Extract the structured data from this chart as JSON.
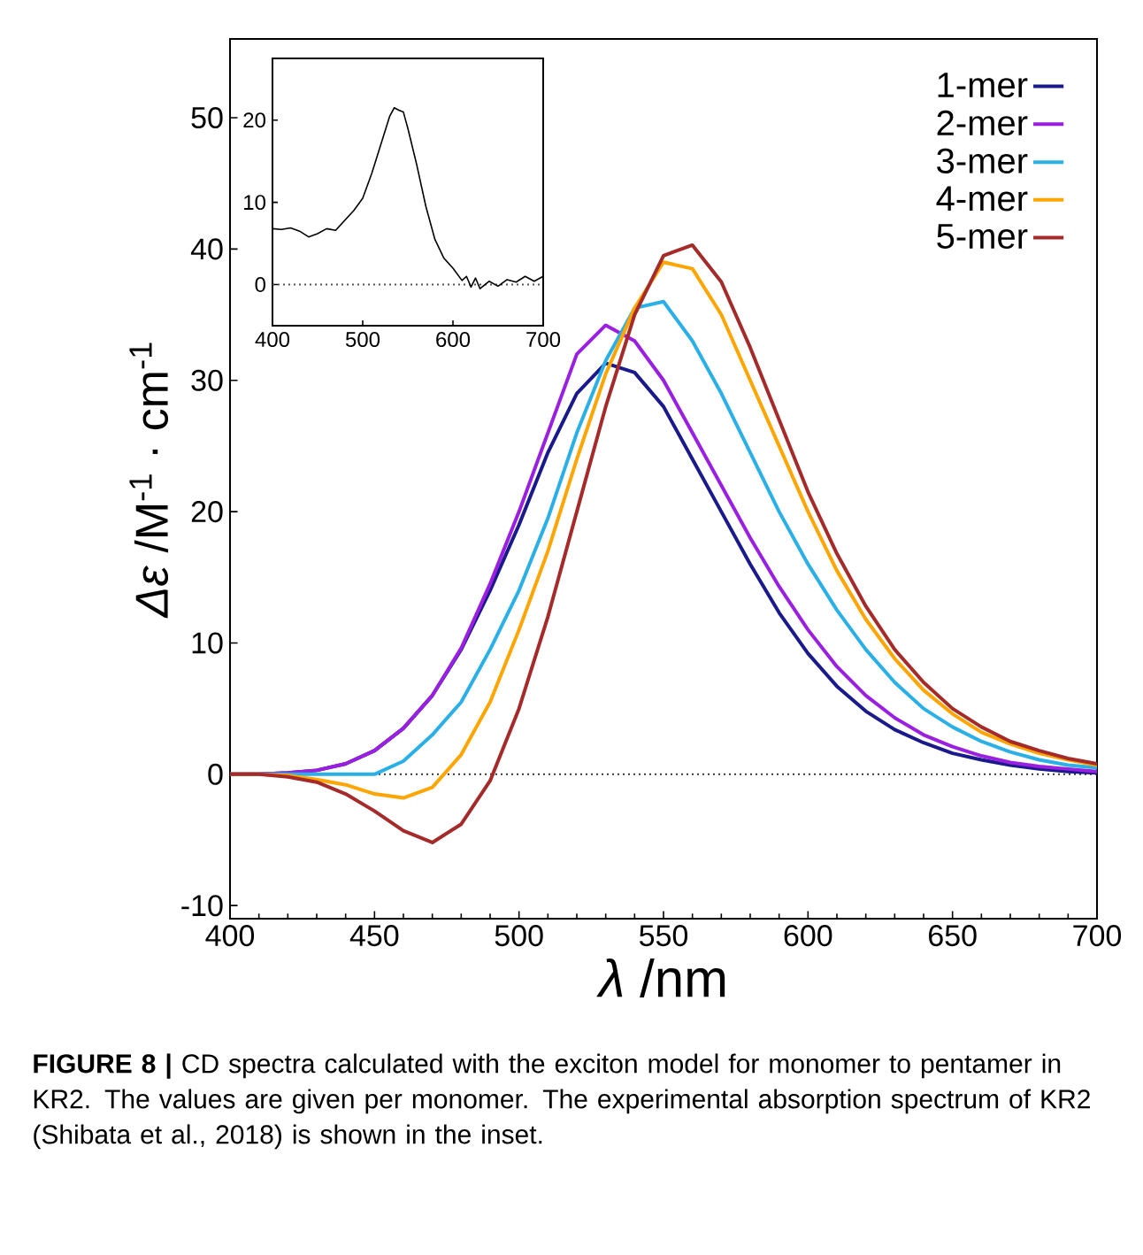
{
  "chart_data": [
    {
      "type": "line",
      "xlabel": "*λ* /nm",
      "ylabel": "*Δε* /M$^{-1}$ · cm$^{-1}$",
      "xlim": [
        400,
        700
      ],
      "ylim": [
        -11,
        56
      ],
      "xticks": [
        400,
        450,
        500,
        550,
        600,
        650,
        700
      ],
      "yticks": [
        -10,
        0,
        10,
        20,
        30,
        40,
        50
      ],
      "legend": "top right",
      "x": [
        400,
        410,
        420,
        430,
        440,
        450,
        460,
        470,
        480,
        490,
        500,
        510,
        520,
        530,
        540,
        550,
        560,
        570,
        580,
        590,
        600,
        610,
        620,
        630,
        640,
        650,
        660,
        670,
        680,
        690,
        700
      ],
      "series": [
        {
          "name": "1-mer",
          "color": "#1a1a8c",
          "values": [
            0,
            0,
            0.1,
            0.3,
            0.8,
            1.8,
            3.5,
            6,
            9.5,
            14,
            19,
            24.5,
            29,
            31.3,
            30.6,
            28,
            24,
            20,
            16,
            12.3,
            9.2,
            6.7,
            4.8,
            3.4,
            2.4,
            1.6,
            1.1,
            0.7,
            0.4,
            0.2,
            0.1
          ]
        },
        {
          "name": "2-mer",
          "color": "#9b1fe0",
          "values": [
            0,
            0,
            0.1,
            0.3,
            0.8,
            1.8,
            3.5,
            6,
            9.6,
            14.5,
            20,
            26,
            32,
            34.2,
            33,
            30,
            26,
            22,
            18,
            14.3,
            11,
            8.2,
            6,
            4.3,
            3,
            2.1,
            1.4,
            0.9,
            0.6,
            0.4,
            0.2
          ]
        },
        {
          "name": "3-mer",
          "color": "#2ab0e6",
          "values": [
            0,
            0,
            0,
            0,
            0,
            0,
            1,
            3,
            5.5,
            9.5,
            14,
            19.5,
            26,
            31.5,
            35.5,
            36,
            33,
            29,
            24.5,
            20,
            16,
            12.5,
            9.5,
            7,
            5,
            3.6,
            2.5,
            1.7,
            1.1,
            0.7,
            0.5
          ]
        },
        {
          "name": "4-mer",
          "color": "#ffa500",
          "values": [
            0,
            0,
            -0.1,
            -0.4,
            -0.8,
            -1.5,
            -1.8,
            -1,
            1.5,
            5.5,
            11,
            17,
            24,
            30.5,
            35.5,
            39,
            38.5,
            35,
            30,
            25,
            20,
            15.5,
            11.8,
            8.8,
            6.4,
            4.6,
            3.2,
            2.3,
            1.6,
            1.1,
            0.7
          ]
        },
        {
          "name": "5-mer",
          "color": "#a52a2a",
          "values": [
            0,
            0,
            -0.2,
            -0.6,
            -1.5,
            -2.8,
            -4.3,
            -5.2,
            -3.8,
            -0.5,
            5,
            12,
            20,
            28,
            35,
            39.5,
            40.3,
            37.5,
            32.5,
            27,
            21.5,
            16.8,
            12.8,
            9.5,
            7,
            5,
            3.6,
            2.5,
            1.8,
            1.2,
            0.8
          ]
        }
      ],
      "ref_lines": [
        {
          "axis": "y",
          "value": 0,
          "color": "#333333",
          "line_style": "dotted"
        }
      ],
      "annotations": [
        "**FIGURE 8 |** CD spectra calculated with the exciton model for monomer to pentamer in KR2. The values are given per monomer. The experimental absorption spectrum of KR2 (Shibata et al., 2018) is shown in the inset."
      ]
    },
    {
      "type": "line",
      "xlim": [
        400,
        700
      ],
      "ylim": [
        -5,
        27.5
      ],
      "xticks": [
        400,
        500,
        600,
        700
      ],
      "yticks": [
        0,
        10,
        20
      ],
      "x": [
        400,
        410,
        420,
        430,
        440,
        450,
        460,
        470,
        480,
        490,
        500,
        510,
        520,
        530,
        535,
        540,
        545,
        550,
        560,
        570,
        580,
        590,
        600,
        610,
        615,
        620,
        625,
        630,
        640,
        650,
        660,
        670,
        680,
        690,
        700
      ],
      "series": [
        {
          "color": "#000000",
          "values": [
            6.8,
            6.7,
            6.9,
            6.5,
            5.8,
            6.2,
            6.8,
            6.6,
            7.8,
            9,
            10.5,
            13.5,
            17,
            20.5,
            21.5,
            21.2,
            21,
            19,
            14.5,
            9.5,
            5.5,
            3.2,
            2,
            0.5,
            1,
            -0.3,
            0.8,
            -0.5,
            0.4,
            -0.2,
            0.6,
            0.3,
            1,
            0.4,
            1
          ]
        }
      ],
      "ref_lines": [
        {
          "axis": "y",
          "value": 0,
          "color": "#555555",
          "line_style": "dotted"
        }
      ]
    }
  ]
}
